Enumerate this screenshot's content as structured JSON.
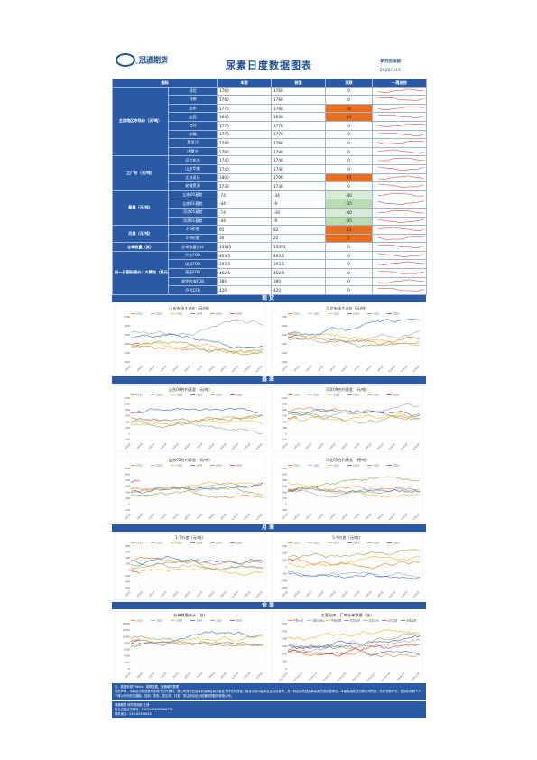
{
  "header": {
    "company": "冠通期货",
    "company_en": "GUANTONG FUTURES",
    "title": "尿素日度数据图表",
    "dept": "研究咨询部",
    "date": "2026/1/16"
  },
  "table": {
    "headers": [
      "指标",
      "",
      "本期",
      "前值",
      "涨跌",
      "一周走势"
    ],
    "groups": [
      {
        "label": "主流地区市场价（元/吨）",
        "rows": [
          {
            "item": "河北",
            "cur": "1760",
            "prev": "1760",
            "chg": "0",
            "hl": ""
          },
          {
            "item": "河南",
            "cur": "1760",
            "prev": "1760",
            "chg": "0",
            "hl": ""
          },
          {
            "item": "山东",
            "cur": "1770",
            "prev": "1760",
            "chg": "10",
            "hl": "up"
          },
          {
            "item": "山西",
            "cur": "1640",
            "prev": "1630",
            "chg": "10",
            "hl": "up"
          },
          {
            "item": "江苏",
            "cur": "1770",
            "prev": "1770",
            "chg": "0",
            "hl": ""
          },
          {
            "item": "安徽",
            "cur": "1770",
            "prev": "1770",
            "chg": "0",
            "hl": ""
          },
          {
            "item": "黑龙江",
            "cur": "1780",
            "prev": "1780",
            "chg": "0",
            "hl": ""
          },
          {
            "item": "内蒙古",
            "cur": "1790",
            "prev": "1790",
            "chg": "0",
            "hl": ""
          }
        ]
      },
      {
        "label": "工厂价（元/吨）",
        "rows": [
          {
            "item": "河北东光",
            "cur": "1740",
            "prev": "1740",
            "chg": "0",
            "hl": ""
          },
          {
            "item": "山东华鲁",
            "cur": "1740",
            "prev": "1740",
            "chg": "0",
            "hl": ""
          },
          {
            "item": "江苏灵谷",
            "cur": "1800",
            "prev": "1790",
            "chg": "10",
            "hl": "up"
          },
          {
            "item": "安徽昊源",
            "cur": "1730",
            "prev": "1730",
            "chg": "0",
            "hl": ""
          }
        ]
      },
      {
        "label": "基差（元/吨）",
        "rows": [
          {
            "item": "山东05基差",
            "cur": "-74",
            "prev": "-34",
            "chg": "-40",
            "hl": "g1"
          },
          {
            "item": "山东01基差",
            "cur": "-44",
            "prev": "-9",
            "chg": "-35",
            "hl": "g2"
          },
          {
            "item": "河北05基差",
            "cur": "-74",
            "prev": "-34",
            "chg": "-40",
            "hl": "g1"
          },
          {
            "item": "河北01基差",
            "cur": "-44",
            "prev": "-9",
            "chg": "-35",
            "hl": "g2"
          }
        ]
      },
      {
        "label": "月差（元/吨）",
        "rows": [
          {
            "item": "1-5价差",
            "cur": "95",
            "prev": "82",
            "chg": "13",
            "hl": "up"
          },
          {
            "item": "5-9价差",
            "cur": "30",
            "prev": "25",
            "chg": "5",
            "hl": "up"
          }
        ]
      },
      {
        "label": "仓单数量（张）",
        "rows": [
          {
            "item": "仓单数量合计",
            "cur": "13355",
            "prev": "13355",
            "chg": "0",
            "hl": ""
          }
        ]
      },
      {
        "label": "前一日国际报价：大颗粒（美元/吨）",
        "rows": [
          {
            "item": "中东FOB",
            "cur": "403.5",
            "prev": "403.5",
            "chg": "0",
            "hl": ""
          },
          {
            "item": "埃及FOB",
            "cur": "393.5",
            "prev": "393.5",
            "chg": "0",
            "hl": ""
          },
          {
            "item": "東亚FOB",
            "cur": "452.5",
            "prev": "452.5",
            "chg": "0",
            "hl": ""
          },
          {
            "item": "波罗的海FOB",
            "cur": "380",
            "prev": "380",
            "chg": "0",
            "hl": ""
          },
          {
            "item": "巴西CFR",
            "cur": "420",
            "prev": "420",
            "chg": "0",
            "hl": ""
          }
        ]
      }
    ]
  },
  "sections": {
    "spot": "现货",
    "basis": "基差",
    "spread": "月差",
    "warrant": "仓单"
  },
  "chart_data": [
    {
      "type": "line",
      "title": "山东市场主流价（元/吨）",
      "legend": [
        "2021",
        "2022",
        "2023",
        "2024",
        "2025",
        "2026"
      ],
      "ylim": [
        1000,
        3500
      ],
      "yticks": [
        "3500",
        "3000",
        "2500",
        "2000",
        "1500",
        "1000"
      ],
      "xticks": [
        "1月1日",
        "2月1日",
        "3月1日",
        "4月1日",
        "5月1日",
        "6月1日",
        "7月1日",
        "8月1日",
        "9月1日",
        "10月1日",
        "11月1日",
        "12月1日"
      ]
    },
    {
      "type": "line",
      "title": "河北市场主流价（元/吨）",
      "legend": [
        "2021",
        "2022",
        "2023",
        "2024",
        "2025",
        "2026"
      ],
      "ylim": [
        1000,
        3500
      ],
      "yticks": [
        "3500",
        "3000",
        "2500",
        "2000",
        "1500",
        "1000"
      ],
      "xticks": [
        "1月1日",
        "2月1日",
        "3月1日",
        "4月1日",
        "5月1日",
        "6月1日",
        "7月1日",
        "8月1日",
        "9月1日",
        "10月1日",
        "11月1日",
        "12月1日"
      ]
    },
    {
      "type": "line",
      "title": "山东09合约基差（元/吨）",
      "legend": [
        "2021",
        "2022",
        "2023",
        "2024",
        "2025",
        "2026"
      ],
      "ylim": [
        -300,
        1200
      ],
      "yticks": [
        "1200",
        "1000",
        "800",
        "600",
        "400",
        "200",
        "0",
        "-200"
      ],
      "xticks": [
        "1月1日",
        "2月1日",
        "3月1日",
        "4月1日",
        "5月1日",
        "6月1日",
        "7月1日",
        "8月1日",
        "9月1日",
        "10月1日",
        "11月1日",
        "12月1日"
      ]
    },
    {
      "type": "line",
      "title": "河北09合约基差（元/吨）",
      "legend": [
        "2021",
        "2022",
        "2023",
        "2024",
        "2025",
        "2026"
      ],
      "ylim": [
        -300,
        1200
      ],
      "yticks": [
        "1200",
        "1000",
        "800",
        "600",
        "400",
        "200",
        "0",
        "-200"
      ],
      "xticks": [
        "1月1日",
        "2月1日",
        "3月1日",
        "4月1日",
        "5月1日",
        "6月1日",
        "7月1日",
        "8月1日",
        "9月1日",
        "10月1日",
        "11月1日",
        "12月1日"
      ]
    },
    {
      "type": "line",
      "title": "山东05合约基差（元/吨）",
      "legend": [
        "2021",
        "2022",
        "2023",
        "2024",
        "2025",
        "2026"
      ],
      "ylim": [
        -300,
        1200
      ],
      "yticks": [
        "1200",
        "1000",
        "800",
        "600",
        "400",
        "200",
        "0",
        "-200"
      ],
      "xticks": [
        "1月1日",
        "2月1日",
        "3月1日",
        "4月1日",
        "5月1日",
        "6月1日",
        "7月1日",
        "8月1日",
        "9月1日",
        "10月1日",
        "11月1日",
        "12月1日"
      ]
    },
    {
      "type": "line",
      "title": "河北05合约基差（元/吨）",
      "legend": [
        "2021",
        "2022",
        "2023",
        "2024",
        "2025",
        "2026"
      ],
      "ylim": [
        -300,
        1200
      ],
      "yticks": [
        "1200",
        "1000",
        "800",
        "600",
        "400",
        "200",
        "0",
        "-200"
      ],
      "xticks": [
        "1月1日",
        "2月1日",
        "3月1日",
        "4月1日",
        "5月1日",
        "6月1日",
        "7月1日",
        "8月1日",
        "9月1日",
        "10月1日",
        "11月1日",
        "12月1日"
      ]
    },
    {
      "type": "line",
      "title": "1-5价差（元/吨）",
      "legend": [
        "2021",
        "2022",
        "2023",
        "2024",
        "2025",
        "2026"
      ],
      "ylim": [
        -600,
        800
      ],
      "yticks": [
        "800",
        "600",
        "400",
        "200",
        "0",
        "-200",
        "-400",
        "-600"
      ],
      "xticks": [
        "1月1日",
        "2月1日",
        "3月1日",
        "4月1日",
        "5月1日",
        "6月1日",
        "7月1日",
        "8月1日",
        "9月1日",
        "10月1日",
        "11月1日",
        "12月1日"
      ]
    },
    {
      "type": "line",
      "title": "5-9价差（元/吨）",
      "legend": [
        "2021",
        "2022",
        "2023",
        "2024",
        "2025",
        "2026"
      ],
      "ylim": [
        -1500,
        1500
      ],
      "yticks": [
        "1500",
        "1000",
        "500",
        "0",
        "-500",
        "-1000",
        "-1500"
      ],
      "xticks": [
        "1月1日",
        "2月1日",
        "3月1日",
        "4月1日",
        "5月1日",
        "6月1日",
        "7月1日",
        "8月1日",
        "9月1日",
        "10月1日",
        "11月1日",
        "12月1日"
      ]
    },
    {
      "type": "line",
      "title": "仓单数量合计（张）",
      "legend": [
        "2021",
        "2022",
        "2023",
        "2024",
        "2025",
        "2026"
      ],
      "ylim": [
        0,
        14000
      ],
      "yticks": [
        "14000",
        "12000",
        "10000",
        "8000",
        "6000",
        "4000",
        "2000",
        "0"
      ],
      "xticks": [
        "1月1日",
        "2月1日",
        "3月1日",
        "4月1日",
        "5月1日",
        "6月1日",
        "7月1日",
        "8月1日",
        "9月1日",
        "10月1日",
        "11月1日",
        "12月1日"
      ]
    },
    {
      "type": "line",
      "title": "主要仓库、厂库仓单数量（张）",
      "legend": [
        "中原大化",
        "河南心连心",
        "中化化肥",
        "东华能源",
        "河北东光",
        "山东华鲁",
        "安徽昊源"
      ],
      "ylim": [
        0,
        3000
      ],
      "yticks": [
        "3000",
        "2500",
        "2000",
        "1500",
        "1000",
        "500",
        "0"
      ],
      "xticks": [
        "2025/10/9",
        "2025/10/21",
        "2025/11/3",
        "2025/11/14",
        "2025/11/25",
        "2025/12/8",
        "2025/12/17",
        "2025/12/29",
        "2026/1/9",
        "2026/1/16"
      ]
    }
  ],
  "footer": {
    "source": "注：数据来源于Wind、钢联数据，冠通期货整理",
    "disclaimer": "免责声明：本报告中的信息均来源于公开资料，我公司对这些信息的准确性和完整性不作任何保证。报告中的内容和意见仅供参考，并不构成对所述品种买卖的出价或询价。本报告版权仅为我公司所有，未经书面许可，任何机构和个人不得以任何形式翻版、复制、发布。如引用、刊发，须注明出处为冠通期货股份有限公司。",
    "analyst": "冠通期货 研究咨询部 王静",
    "license": "执业资格证书编号：F0235424/Z0000771",
    "phone": "联系电话：010-85356618"
  },
  "colors": {
    "primary": "#2a5aa3",
    "up": "#e86f1d",
    "down1": "#d7ecd2",
    "down2": "#b9dcb0",
    "line2021": "#e87c2a",
    "line2022": "#9aa5b3",
    "line2023": "#f0b429",
    "line2024": "#3f6fbf",
    "line2025": "#8aa84a",
    "line2026": "#d62a2a"
  }
}
